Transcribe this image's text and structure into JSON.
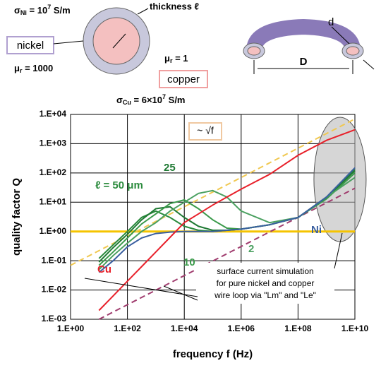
{
  "diagram": {
    "sigma_ni": [
      "σ",
      "Ni",
      " = 10",
      "7",
      " S/m"
    ],
    "nickel": "nickel",
    "mu_ni": [
      "μ",
      "r",
      " = 1000"
    ],
    "thickness": "thickness ℓ",
    "mu_cu": [
      "μ",
      "r",
      " = 1"
    ],
    "copper": "copper",
    "sigma_cu": [
      "σ",
      "Cu",
      " = 6×10",
      "7",
      " S/m"
    ],
    "d": "d",
    "D": "D"
  },
  "chart_data": {
    "type": "line",
    "xlabel": "frequency  f (Hz)",
    "ylabel": "quality factor  Q",
    "log_x": true,
    "log_y": true,
    "grid": true,
    "xlim": [
      1,
      10000000000
    ],
    "ylim": [
      0.001,
      10000
    ],
    "xticks": [
      {
        "value": 1,
        "label": "1.E+00"
      },
      {
        "value": 100,
        "label": "1.E+02"
      },
      {
        "value": 10000,
        "label": "1.E+04"
      },
      {
        "value": 1000000,
        "label": "1.E+06"
      },
      {
        "value": 100000000,
        "label": "1.E+08"
      },
      {
        "value": 10000000000,
        "label": "1.E+10"
      }
    ],
    "yticks": [
      {
        "value": 0.001,
        "label": "1.E-03"
      },
      {
        "value": 0.01,
        "label": "1.E-02"
      },
      {
        "value": 0.1,
        "label": "1.E-01"
      },
      {
        "value": 1,
        "label": "1.E+00"
      },
      {
        "value": 10,
        "label": "1.E+01"
      },
      {
        "value": 100,
        "label": "1.E+02"
      },
      {
        "value": 1000,
        "label": "1.E+03"
      },
      {
        "value": 10000,
        "label": "1.E+04"
      }
    ],
    "x": [
      10,
      31.6,
      100,
      316,
      1000,
      3160,
      10000,
      31600,
      100000,
      316000,
      1000000,
      10000000,
      100000000,
      1000000000,
      10000000000
    ],
    "series": [
      {
        "color": "#f5c400",
        "values": [
          1,
          1
        ],
        "x": [
          1,
          10000000000
        ],
        "width": 3
      },
      {
        "color": "#f0c850",
        "values": [
          0.07,
          7000
        ],
        "x": [
          1,
          10000000000
        ],
        "dashed": true
      },
      {
        "color": "#a03c6e",
        "values": [
          0.001,
          30
        ],
        "x": [
          10,
          10000000000
        ],
        "dashed": true
      },
      {
        "name": "ℓ = 50 μm",
        "color": "#2a8a3c",
        "values": [
          0.12,
          0.35,
          1,
          3,
          5,
          3,
          1.5,
          1.1,
          1,
          1.1,
          1.2,
          1.7,
          3,
          14,
          130
        ]
      },
      {
        "name": "25",
        "color": "#1f7a34",
        "values": [
          0.09,
          0.28,
          0.8,
          2.5,
          6,
          7,
          3,
          1.5,
          1.1,
          1.1,
          1.2,
          1.7,
          3,
          14,
          120
        ]
      },
      {
        "name": "10",
        "color": "#3a9a4a",
        "values": [
          0.07,
          0.2,
          0.6,
          1.8,
          4,
          9,
          12,
          6,
          2.5,
          1.3,
          1.2,
          1.7,
          3,
          13,
          100
        ]
      },
      {
        "name": "2",
        "color": "#4aa060",
        "values": [
          0.05,
          0.15,
          0.4,
          1,
          2,
          5,
          10,
          20,
          25,
          15,
          5,
          2,
          3,
          15,
          70
        ]
      },
      {
        "name": "Ni",
        "color": "#3a5fa0",
        "values": [
          0.04,
          0.1,
          0.3,
          0.6,
          0.85,
          0.95,
          1,
          1,
          1,
          1.1,
          1.2,
          1.7,
          3,
          15,
          150
        ]
      },
      {
        "name": "Cu",
        "color": "#e8202a",
        "values": [
          0.002,
          0.0063,
          0.02,
          0.063,
          0.2,
          0.63,
          2,
          4,
          8,
          15,
          28,
          90,
          400,
          1300,
          3000
        ]
      }
    ],
    "annotations": [
      "~ √f",
      "surface current simulation",
      "for pure nickel and copper",
      "wire loop via \"Lm\" and \"Le\""
    ]
  }
}
